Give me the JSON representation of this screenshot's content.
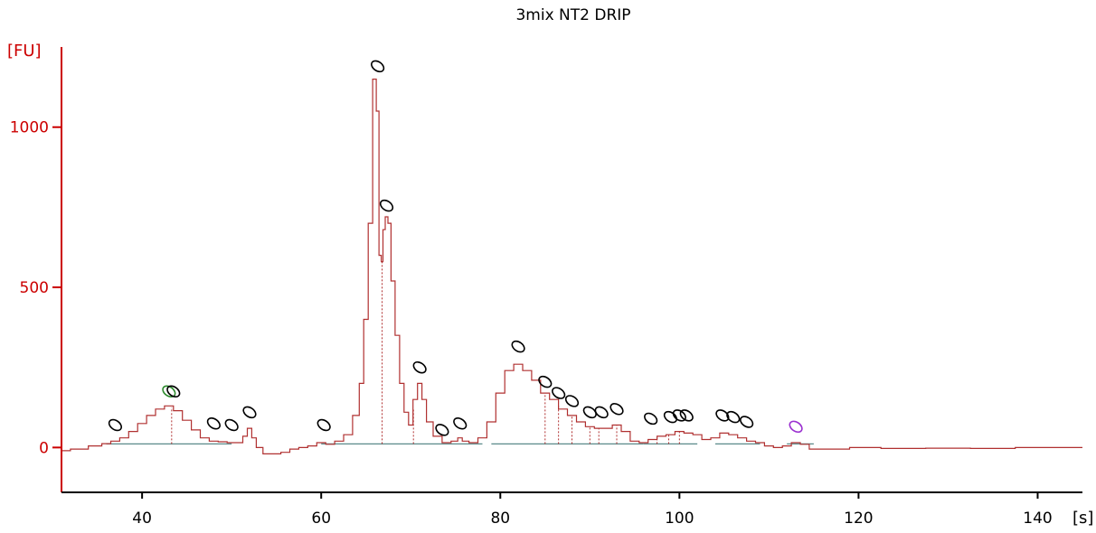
{
  "chart_data": {
    "type": "line",
    "title": "3mix NT2 DRIP",
    "xlabel": "[s]",
    "ylabel": "[FU]",
    "xlim": [
      31,
      145
    ],
    "ylim": [
      -140,
      1270
    ],
    "x_ticks": [
      40,
      60,
      80,
      100,
      120,
      140
    ],
    "y_ticks": [
      0,
      500,
      1000
    ],
    "grid": false,
    "legend": "none",
    "colors": {
      "trace": "#b03030",
      "axis": "#cc0000",
      "baseline": "#5a8a8a",
      "marker": "#000000",
      "marker_green": "#2e8b2e",
      "marker_purple": "#9b30d0"
    },
    "series": [
      {
        "x": [
          31,
          33,
          35,
          36,
          37,
          38,
          39,
          40,
          41,
          42,
          43,
          44,
          45,
          46,
          47,
          48,
          49,
          50,
          51,
          51.5,
          52,
          52.5,
          53,
          54,
          55,
          56,
          57,
          58,
          59,
          60,
          61,
          62,
          63,
          64,
          64.5,
          65,
          65.5,
          66,
          66.3,
          66.6,
          66.8,
          67.0,
          67.3,
          67.6,
          68,
          68.5,
          69,
          69.5,
          70,
          70.5,
          71,
          71.5,
          72,
          73,
          74,
          75,
          75.5,
          76,
          77,
          78,
          79,
          80,
          81,
          82,
          83,
          84,
          85,
          86,
          87,
          88,
          89,
          90,
          91,
          92,
          93,
          94,
          95,
          96,
          97,
          98,
          99,
          100,
          101,
          102,
          103,
          104,
          105,
          106,
          107,
          108,
          109,
          110,
          111,
          112,
          113,
          114,
          115,
          116,
          118,
          120,
          125,
          130,
          135,
          140,
          145
        ],
        "y": [
          -10,
          -5,
          5,
          12,
          20,
          30,
          50,
          75,
          100,
          120,
          130,
          115,
          85,
          55,
          30,
          20,
          18,
          15,
          15,
          35,
          60,
          30,
          0,
          -20,
          -20,
          -15,
          -5,
          0,
          5,
          15,
          10,
          20,
          40,
          100,
          200,
          400,
          700,
          1150,
          1050,
          600,
          580,
          680,
          720,
          700,
          520,
          350,
          200,
          110,
          70,
          150,
          200,
          150,
          80,
          35,
          15,
          20,
          30,
          20,
          15,
          30,
          80,
          170,
          240,
          260,
          240,
          210,
          170,
          150,
          120,
          100,
          80,
          65,
          60,
          60,
          70,
          50,
          20,
          15,
          25,
          35,
          40,
          50,
          45,
          40,
          25,
          30,
          45,
          40,
          30,
          20,
          15,
          5,
          0,
          5,
          15,
          10,
          -5,
          -5,
          -5,
          0,
          -3,
          -2,
          -3,
          0,
          0
        ]
      }
    ],
    "peak_marks": [
      {
        "x": 37.0,
        "y": 70
      },
      {
        "x": 43.0,
        "y": 175,
        "style": "green"
      },
      {
        "x": 43.5,
        "y": 175
      },
      {
        "x": 48.0,
        "y": 75
      },
      {
        "x": 50.0,
        "y": 70
      },
      {
        "x": 52.0,
        "y": 110
      },
      {
        "x": 60.3,
        "y": 70
      },
      {
        "x": 66.3,
        "y": 1190
      },
      {
        "x": 67.3,
        "y": 755
      },
      {
        "x": 71.0,
        "y": 250
      },
      {
        "x": 73.5,
        "y": 55
      },
      {
        "x": 75.5,
        "y": 75
      },
      {
        "x": 82.0,
        "y": 315
      },
      {
        "x": 85.0,
        "y": 205
      },
      {
        "x": 86.5,
        "y": 170
      },
      {
        "x": 88.0,
        "y": 145
      },
      {
        "x": 90.0,
        "y": 110
      },
      {
        "x": 91.3,
        "y": 110
      },
      {
        "x": 93.0,
        "y": 120
      },
      {
        "x": 96.8,
        "y": 90
      },
      {
        "x": 99.0,
        "y": 95
      },
      {
        "x": 100.0,
        "y": 100
      },
      {
        "x": 100.8,
        "y": 100
      },
      {
        "x": 104.8,
        "y": 100
      },
      {
        "x": 106.0,
        "y": 95
      },
      {
        "x": 107.5,
        "y": 80
      },
      {
        "x": 113.0,
        "y": 65,
        "style": "purple"
      }
    ],
    "drop_lines": [
      43.3,
      66.8,
      70.3,
      85.0,
      86.5,
      88.0,
      90.0,
      91.0,
      93.0,
      97.5,
      98.8,
      100.0
    ],
    "baselines": [
      {
        "x0": 36,
        "x1": 50
      },
      {
        "x0": 60,
        "x1": 78
      },
      {
        "x0": 79,
        "x1": 96
      },
      {
        "x0": 96,
        "x1": 102
      },
      {
        "x0": 104,
        "x1": 109
      },
      {
        "x0": 112,
        "x1": 115
      }
    ]
  }
}
